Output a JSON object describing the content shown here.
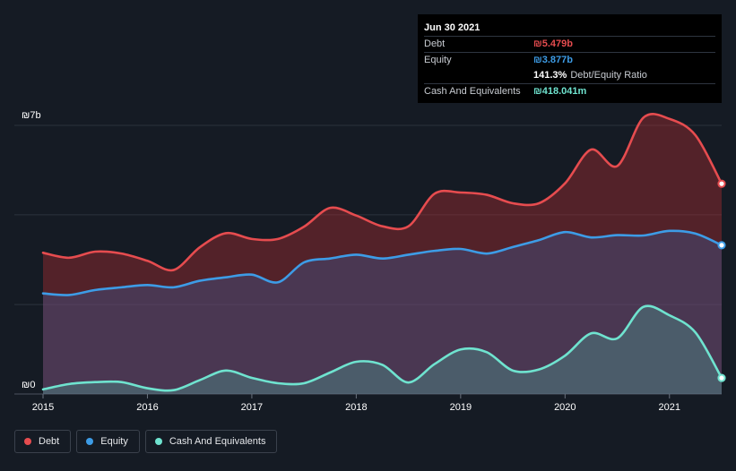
{
  "tooltip": {
    "date": "Jun 30 2021",
    "rows": [
      {
        "label": "Debt",
        "value": "₪5.479b",
        "color": "#e64c4f"
      },
      {
        "label": "Equity",
        "value": "₪3.877b",
        "color": "#3d9ce6"
      },
      {
        "label": "",
        "value": "141.3%",
        "suffix": "Debt/Equity Ratio",
        "color": "#ffffff"
      },
      {
        "label": "Cash And Equivalents",
        "value": "₪418.041m",
        "color": "#6fe3cf"
      }
    ]
  },
  "legend": [
    {
      "label": "Debt",
      "color": "#e64c4f"
    },
    {
      "label": "Equity",
      "color": "#3d9ce6"
    },
    {
      "label": "Cash And Equivalents",
      "color": "#6fe3cf"
    }
  ],
  "chart_data": {
    "type": "area",
    "y_unit": "₪ billions",
    "ylim": [
      0,
      7
    ],
    "xlim": [
      2015.0,
      2021.5
    ],
    "y_tick_labels": [
      {
        "value": 7,
        "label": "₪7b"
      },
      {
        "value": 0,
        "label": "₪0"
      }
    ],
    "gridlines": [
      0,
      2.33,
      4.67,
      7
    ],
    "x_ticks": [
      2015,
      2016,
      2017,
      2018,
      2019,
      2020,
      2021
    ],
    "x_tick_labels": [
      "2015",
      "2016",
      "2017",
      "2018",
      "2019",
      "2020",
      "2021"
    ],
    "series": [
      {
        "name": "Debt",
        "color": "#e64c4f",
        "x": [
          2015.0,
          2015.25,
          2015.5,
          2015.75,
          2016.0,
          2016.25,
          2016.5,
          2016.75,
          2017.0,
          2017.25,
          2017.5,
          2017.75,
          2018.0,
          2018.25,
          2018.5,
          2018.75,
          2019.0,
          2019.25,
          2019.5,
          2019.75,
          2020.0,
          2020.25,
          2020.5,
          2020.75,
          2021.0,
          2021.25,
          2021.5
        ],
        "values": [
          3.68,
          3.55,
          3.71,
          3.66,
          3.47,
          3.23,
          3.82,
          4.19,
          4.04,
          4.04,
          4.36,
          4.85,
          4.65,
          4.37,
          4.37,
          5.22,
          5.25,
          5.19,
          4.97,
          4.97,
          5.49,
          6.37,
          5.94,
          7.2,
          7.17,
          6.74,
          5.479
        ]
      },
      {
        "name": "Equity",
        "color": "#3d9ce6",
        "x": [
          2015.0,
          2015.25,
          2015.5,
          2015.75,
          2016.0,
          2016.25,
          2016.5,
          2016.75,
          2017.0,
          2017.25,
          2017.5,
          2017.75,
          2018.0,
          2018.25,
          2018.5,
          2018.75,
          2019.0,
          2019.25,
          2019.5,
          2019.75,
          2020.0,
          2020.25,
          2020.5,
          2020.75,
          2021.0,
          2021.25,
          2021.5
        ],
        "values": [
          2.62,
          2.58,
          2.71,
          2.78,
          2.84,
          2.78,
          2.95,
          3.04,
          3.11,
          2.91,
          3.43,
          3.53,
          3.63,
          3.53,
          3.63,
          3.73,
          3.78,
          3.66,
          3.83,
          4.01,
          4.22,
          4.08,
          4.14,
          4.13,
          4.25,
          4.18,
          3.877
        ]
      },
      {
        "name": "Cash And Equivalents",
        "color": "#6fe3cf",
        "x": [
          2015.0,
          2015.25,
          2015.5,
          2015.75,
          2016.0,
          2016.25,
          2016.5,
          2016.75,
          2017.0,
          2017.25,
          2017.5,
          2017.75,
          2018.0,
          2018.25,
          2018.5,
          2018.75,
          2019.0,
          2019.25,
          2019.5,
          2019.75,
          2020.0,
          2020.25,
          2020.5,
          2020.75,
          2021.0,
          2021.25,
          2021.5
        ],
        "values": [
          0.12,
          0.26,
          0.31,
          0.31,
          0.15,
          0.1,
          0.36,
          0.61,
          0.42,
          0.28,
          0.28,
          0.56,
          0.84,
          0.76,
          0.3,
          0.78,
          1.16,
          1.09,
          0.61,
          0.64,
          1.0,
          1.58,
          1.45,
          2.27,
          2.05,
          1.6,
          0.418
        ]
      }
    ]
  }
}
